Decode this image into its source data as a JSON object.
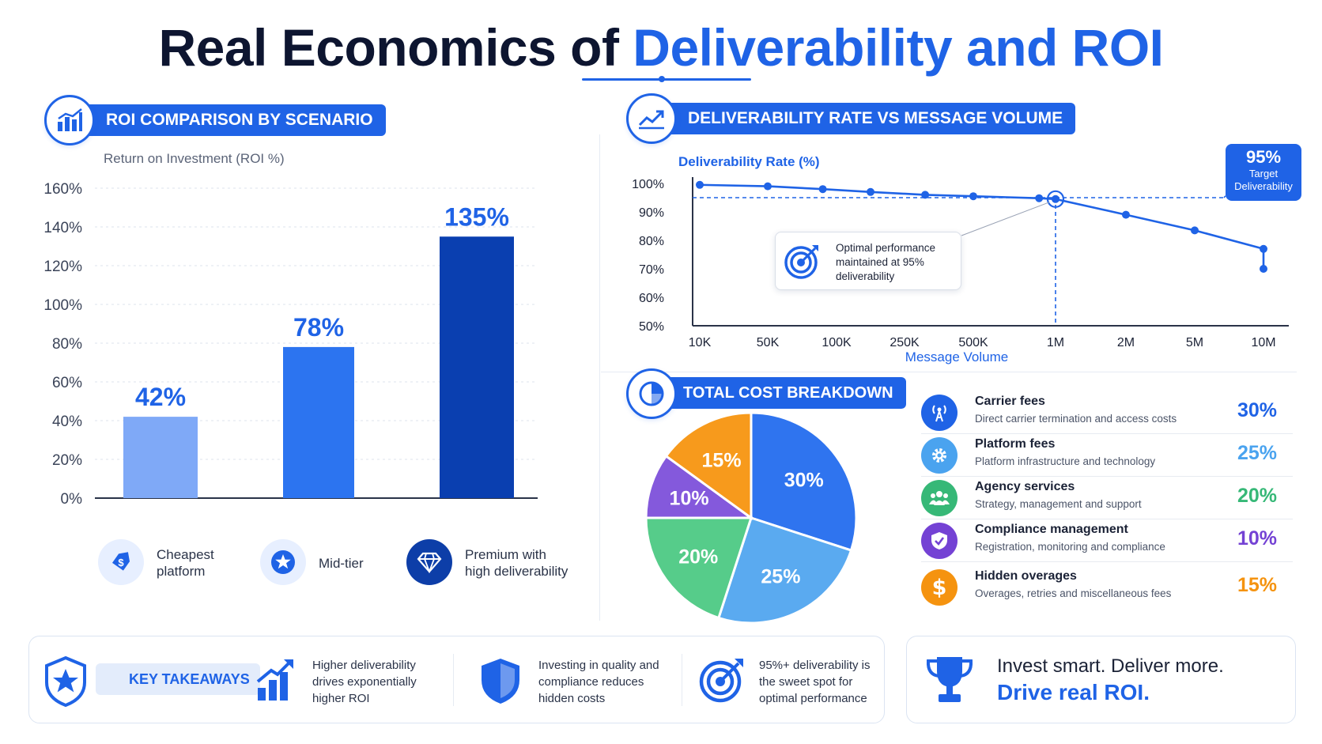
{
  "title": {
    "part1": "Real Economics of ",
    "part2": "Deliverability and ROI"
  },
  "colors": {
    "primary": "#1f63e6",
    "dark_blue": "#0a3fb0",
    "light_blue": "#7fa9f7",
    "sky": "#5aaaf0",
    "green": "#3fc17d",
    "purple": "#7b4fd6",
    "orange": "#f79a1c"
  },
  "roi_section": {
    "header": "ROI COMPARISON BY SCENARIO",
    "subtitle": "Return on Investment (ROI %)",
    "scenarios": [
      {
        "line1": "Cheapest",
        "line2": "platform",
        "icon": "tag-icon"
      },
      {
        "line1": "Mid-tier",
        "line2": "",
        "icon": "star-icon"
      },
      {
        "line1": "Premium with",
        "line2": "high deliverability",
        "icon": "diamond-icon"
      }
    ]
  },
  "deliverability_section": {
    "header": "DELIVERABILITY RATE VS MESSAGE VOLUME",
    "target_badge": {
      "value": "95%",
      "line1": "Target",
      "line2": "Deliverability"
    },
    "annotation": {
      "line1": "Optimal performance",
      "line2": "maintained at 95%",
      "line3": "deliverability"
    }
  },
  "cost_section": {
    "header": "TOTAL COST BREAKDOWN",
    "items": [
      {
        "name": "Carrier fees",
        "desc": "Direct carrier termination and access costs",
        "pct": "30%",
        "color": "#1f63e6",
        "icon": "antenna-icon"
      },
      {
        "name": "Platform fees",
        "desc": "Platform infrastructure and technology",
        "pct": "25%",
        "color": "#4aa3ef",
        "icon": "gear-icon"
      },
      {
        "name": "Agency services",
        "desc": "Strategy, management and support",
        "pct": "20%",
        "color": "#36b877",
        "icon": "people-icon"
      },
      {
        "name": "Compliance management",
        "desc": "Registration, monitoring and compliance",
        "pct": "10%",
        "color": "#7442d4",
        "icon": "shield-check-icon"
      },
      {
        "name": "Hidden overages",
        "desc": "Overages, retries and miscellaneous fees",
        "pct": "15%",
        "color": "#f5930f",
        "icon": "dollar-icon"
      }
    ]
  },
  "takeaways": {
    "label": "KEY TAKEAWAYS",
    "items": [
      {
        "line1": "Higher deliverability",
        "line2": "drives exponentially",
        "line3": "higher ROI",
        "icon": "growth-chart-icon"
      },
      {
        "line1": "Investing in quality and",
        "line2": "compliance reduces",
        "line3": "hidden costs",
        "icon": "shield-icon"
      },
      {
        "line1": "95%+ deliverability is",
        "line2": "the sweet spot for",
        "line3": "optimal performance",
        "icon": "target-icon"
      }
    ]
  },
  "cta": {
    "line1": "Invest smart. Deliver more.",
    "line2": "Drive real ROI."
  },
  "chart_data": [
    {
      "type": "bar",
      "title": "ROI COMPARISON BY SCENARIO",
      "ylabel": "Return on Investment (ROI %)",
      "categories": [
        "Cheapest platform",
        "Mid-tier",
        "Premium with high deliverability"
      ],
      "values": [
        42,
        78,
        135
      ],
      "value_labels": [
        "42%",
        "78%",
        "135%"
      ],
      "bar_colors": [
        "#7fa9f7",
        "#2c74f0",
        "#0a3fb0"
      ],
      "ylim": [
        0,
        160
      ],
      "yticks": [
        "0%",
        "20%",
        "40%",
        "60%",
        "80%",
        "100%",
        "120%",
        "140%",
        "160%"
      ],
      "grid": true
    },
    {
      "type": "line",
      "title": "DELIVERABILITY RATE VS MESSAGE VOLUME",
      "xlabel": "Message Volume",
      "ylabel": "Deliverability Rate (%)",
      "x": [
        "10K",
        "50K",
        "100K",
        "250K",
        "500K",
        "1M",
        "2M",
        "5M",
        "10M"
      ],
      "series": [
        {
          "x": [
            "10K",
            "",
            "50K",
            "",
            "100K",
            "",
            "250K",
            "",
            "500K",
            "",
            "1M",
            "2M",
            "",
            "5M",
            "10M"
          ],
          "values": [
            99.5,
            99,
            98,
            97,
            96,
            95.5,
            95.3,
            95,
            94.8,
            94.6,
            94.5,
            89,
            83.5,
            77,
            70
          ]
        }
      ],
      "xticks": [
        "10K",
        "50K",
        "100K",
        "250K",
        "500K",
        "1M",
        "2M",
        "5M",
        "10M"
      ],
      "point_positions": [
        0,
        1,
        2,
        3,
        4,
        5,
        6,
        7,
        8
      ],
      "points": [
        {
          "x": 0,
          "y": 99.5
        },
        {
          "x": 1,
          "y": 99
        },
        {
          "x": 1.8,
          "y": 98
        },
        {
          "x": 2.5,
          "y": 97
        },
        {
          "x": 3.3,
          "y": 96
        },
        {
          "x": 4,
          "y": 95.5
        },
        {
          "x": 4.8,
          "y": 94.8
        },
        {
          "x": 5,
          "y": 94.5
        },
        {
          "x": 6,
          "y": 89
        },
        {
          "x": 7,
          "y": 83.5
        },
        {
          "x": 8,
          "y": 77
        },
        {
          "x": 9,
          "y": 70
        }
      ],
      "ylim": [
        50,
        100
      ],
      "yticks": [
        "50%",
        "60%",
        "70%",
        "80%",
        "90%",
        "100%"
      ],
      "target_line": 95,
      "highlight_x": "1M"
    },
    {
      "type": "pie",
      "title": "TOTAL COST BREAKDOWN",
      "slices": [
        {
          "label": "Carrier fees",
          "value": 30,
          "text": "30%",
          "color": "#2f74ef"
        },
        {
          "label": "Platform fees",
          "value": 25,
          "text": "25%",
          "color": "#5aaaf0"
        },
        {
          "label": "Agency services",
          "value": 20,
          "text": "20%",
          "color": "#56cc8a"
        },
        {
          "label": "Compliance management",
          "value": 10,
          "text": "10%",
          "color": "#8459dc"
        },
        {
          "label": "Hidden overages",
          "value": 15,
          "text": "15%",
          "color": "#f79a1c"
        }
      ]
    }
  ]
}
